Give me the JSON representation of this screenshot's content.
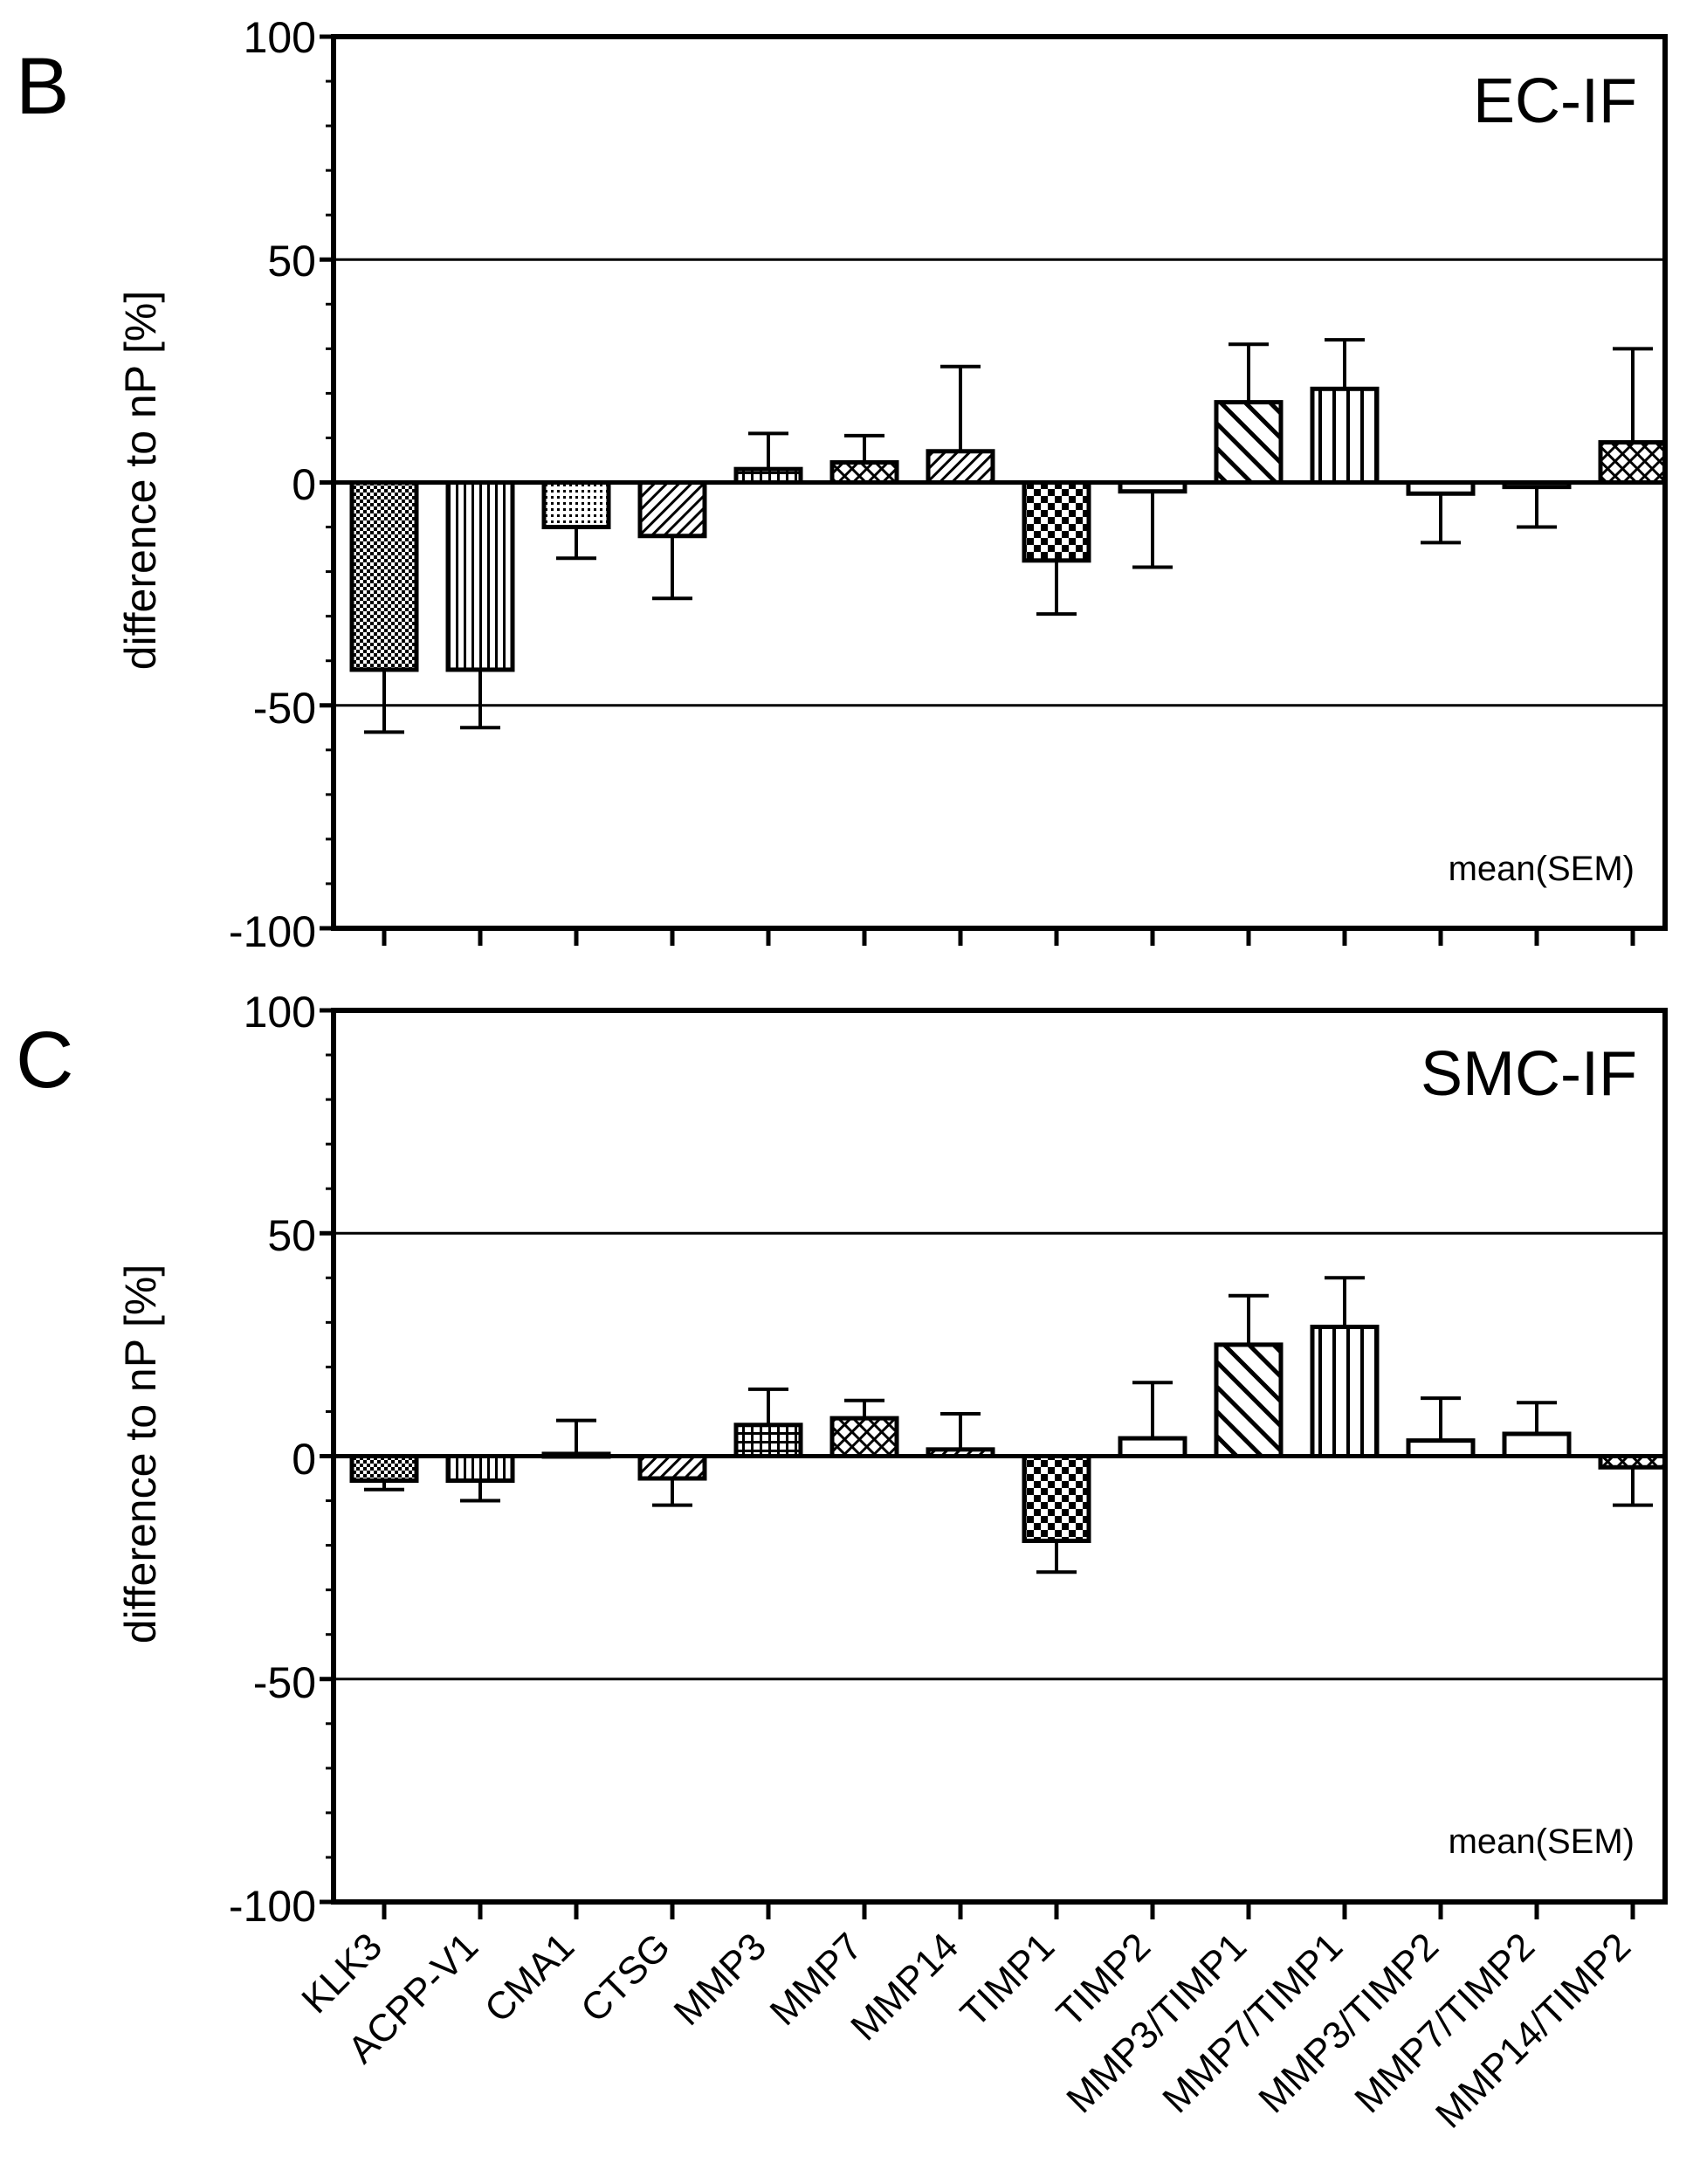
{
  "figure": {
    "categories": [
      "KLK3",
      "ACPP-V1",
      "CMA1",
      "CTSG",
      "MMP3",
      "MMP7",
      "MMP14",
      "TIMP1",
      "TIMP2",
      "MMP3/TIMP1",
      "MMP7/TIMP1",
      "MMP3/TIMP2",
      "MMP7/TIMP2",
      "MMP14/TIMP2"
    ],
    "patterns": [
      "fine-check",
      "vertical",
      "dots",
      "diagonal",
      "grid",
      "diag-cross",
      "diagonal",
      "check",
      "none",
      "diagonal-wide",
      "vertical-wide",
      "none",
      "none",
      "diag-cross"
    ],
    "colors": {
      "ink": "#000000",
      "background": "#ffffff"
    }
  },
  "chart_data": [
    {
      "type": "bar",
      "panel": "B",
      "title": "EC-IF",
      "ylabel": "difference to nP [%]",
      "annotation": "mean(SEM)",
      "ylim": [
        -100,
        100
      ],
      "yticks": [
        "100",
        "50",
        "0",
        "-50",
        "-100"
      ],
      "gridlines": [
        50,
        -50
      ],
      "categories": [
        "KLK3",
        "ACPP-V1",
        "CMA1",
        "CTSG",
        "MMP3",
        "MMP7",
        "MMP14",
        "TIMP1",
        "TIMP2",
        "MMP3/TIMP1",
        "MMP7/TIMP1",
        "MMP3/TIMP2",
        "MMP7/TIMP2",
        "MMP14/TIMP2"
      ],
      "values": [
        -42,
        -42,
        -10,
        -12,
        3,
        4.5,
        7,
        -17.5,
        -2,
        18,
        21,
        -2.5,
        -1,
        9
      ],
      "sem": [
        14,
        13,
        7,
        14,
        8,
        6,
        19,
        12,
        17,
        13,
        11,
        11,
        9,
        21
      ]
    },
    {
      "type": "bar",
      "panel": "C",
      "title": "SMC-IF",
      "ylabel": "difference to nP [%]",
      "annotation": "mean(SEM)",
      "ylim": [
        -100,
        100
      ],
      "yticks": [
        "100",
        "50",
        "0",
        "-50",
        "-100"
      ],
      "gridlines": [
        50,
        -50
      ],
      "categories": [
        "KLK3",
        "ACPP-V1",
        "CMA1",
        "CTSG",
        "MMP3",
        "MMP7",
        "MMP14",
        "TIMP1",
        "TIMP2",
        "MMP3/TIMP1",
        "MMP7/TIMP1",
        "MMP3/TIMP2",
        "MMP7/TIMP2",
        "MMP14/TIMP2"
      ],
      "values": [
        -5.5,
        -5.5,
        0.5,
        -5,
        7,
        8.5,
        1.5,
        -19,
        4,
        25,
        29,
        3.5,
        5,
        -2.5
      ],
      "sem": [
        2,
        4.5,
        7.5,
        6,
        8,
        4,
        8,
        7,
        12.5,
        11,
        11,
        9.5,
        7,
        8.5
      ]
    }
  ]
}
